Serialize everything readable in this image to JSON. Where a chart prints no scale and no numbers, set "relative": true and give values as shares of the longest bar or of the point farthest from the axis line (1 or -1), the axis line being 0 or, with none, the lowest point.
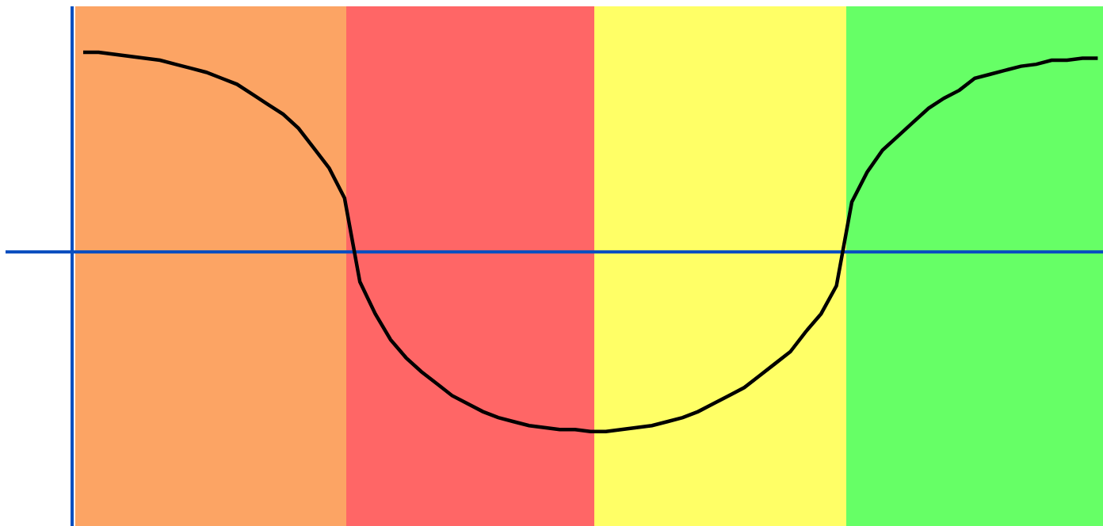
{
  "chart_data": {
    "type": "line",
    "relative": true,
    "categories": [
      null,
      null,
      null,
      null,
      null,
      null,
      null,
      null,
      null,
      null,
      null,
      null,
      null,
      null,
      null,
      null,
      null,
      null,
      null,
      null,
      null,
      null,
      null,
      null,
      null,
      null,
      null,
      null,
      null,
      null,
      null,
      null,
      null,
      null,
      null,
      null,
      null,
      null,
      null,
      null,
      null,
      null,
      null,
      null,
      null,
      null,
      null,
      null,
      null,
      null,
      null,
      null,
      null,
      null,
      null,
      null,
      null,
      null,
      null,
      null,
      null,
      null,
      null,
      null,
      null,
      null,
      null
    ],
    "series": [
      {
        "color": "#000000",
        "values": [
          1.0,
          1.0,
          0.99,
          0.98,
          0.97,
          0.96,
          0.94,
          0.92,
          0.9,
          0.87,
          0.84,
          0.79,
          0.74,
          0.69,
          0.62,
          0.52,
          0.42,
          0.27,
          -0.15,
          -0.31,
          -0.44,
          -0.53,
          -0.6,
          -0.66,
          -0.72,
          -0.76,
          -0.8,
          -0.83,
          -0.85,
          -0.87,
          -0.88,
          -0.89,
          -0.89,
          -0.9,
          -0.9,
          -0.89,
          -0.88,
          -0.87,
          -0.85,
          -0.83,
          -0.8,
          -0.76,
          -0.72,
          -0.68,
          -0.62,
          -0.56,
          -0.5,
          -0.4,
          -0.31,
          -0.17,
          0.25,
          0.4,
          0.51,
          0.58,
          0.65,
          0.72,
          0.77,
          0.81,
          0.87,
          0.89,
          0.91,
          0.93,
          0.94,
          0.96,
          0.96,
          0.97,
          0.97
        ]
      }
    ],
    "ref_lines": [
      {
        "axis": "y",
        "value": 0,
        "color": "#0a4fc0"
      }
    ],
    "line_style": "solid"
  }
}
